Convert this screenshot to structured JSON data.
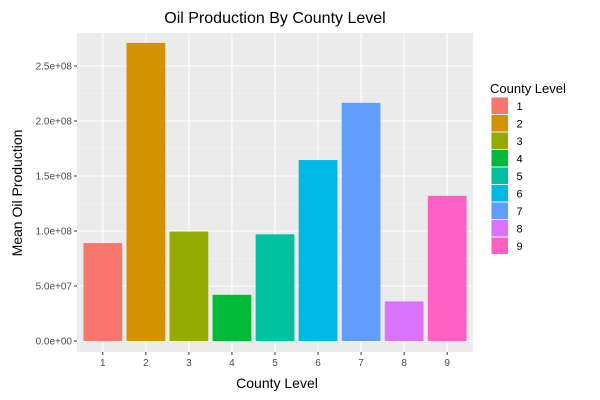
{
  "chart_data": {
    "type": "bar",
    "title": "Oil Production By County Level",
    "xlabel": "County Level",
    "ylabel": "Mean Oil Production",
    "categories": [
      "1",
      "2",
      "3",
      "4",
      "5",
      "6",
      "7",
      "8",
      "9"
    ],
    "values": [
      89000000,
      271000000,
      99500000,
      42000000,
      97000000,
      164500000,
      216500000,
      36000000,
      132000000
    ],
    "colors": [
      "#F8766D",
      "#D39200",
      "#93AA00",
      "#00BA38",
      "#00C19F",
      "#00B9E3",
      "#619CFF",
      "#DB72FB",
      "#FF61C3"
    ],
    "ylim": [
      0,
      285000000
    ],
    "yticks": [
      0,
      50000000,
      100000000,
      150000000,
      200000000,
      250000000
    ],
    "ytick_labels": [
      "0.0e+00",
      "5.0e+07",
      "1.0e+08",
      "1.5e+08",
      "2.0e+08",
      "2.5e+08"
    ],
    "grid": true,
    "panel_background": "#EBEBEB",
    "legend": {
      "title": "County Level",
      "placement": "right",
      "labels": [
        "1",
        "2",
        "3",
        "4",
        "5",
        "6",
        "7",
        "8",
        "9"
      ]
    }
  }
}
